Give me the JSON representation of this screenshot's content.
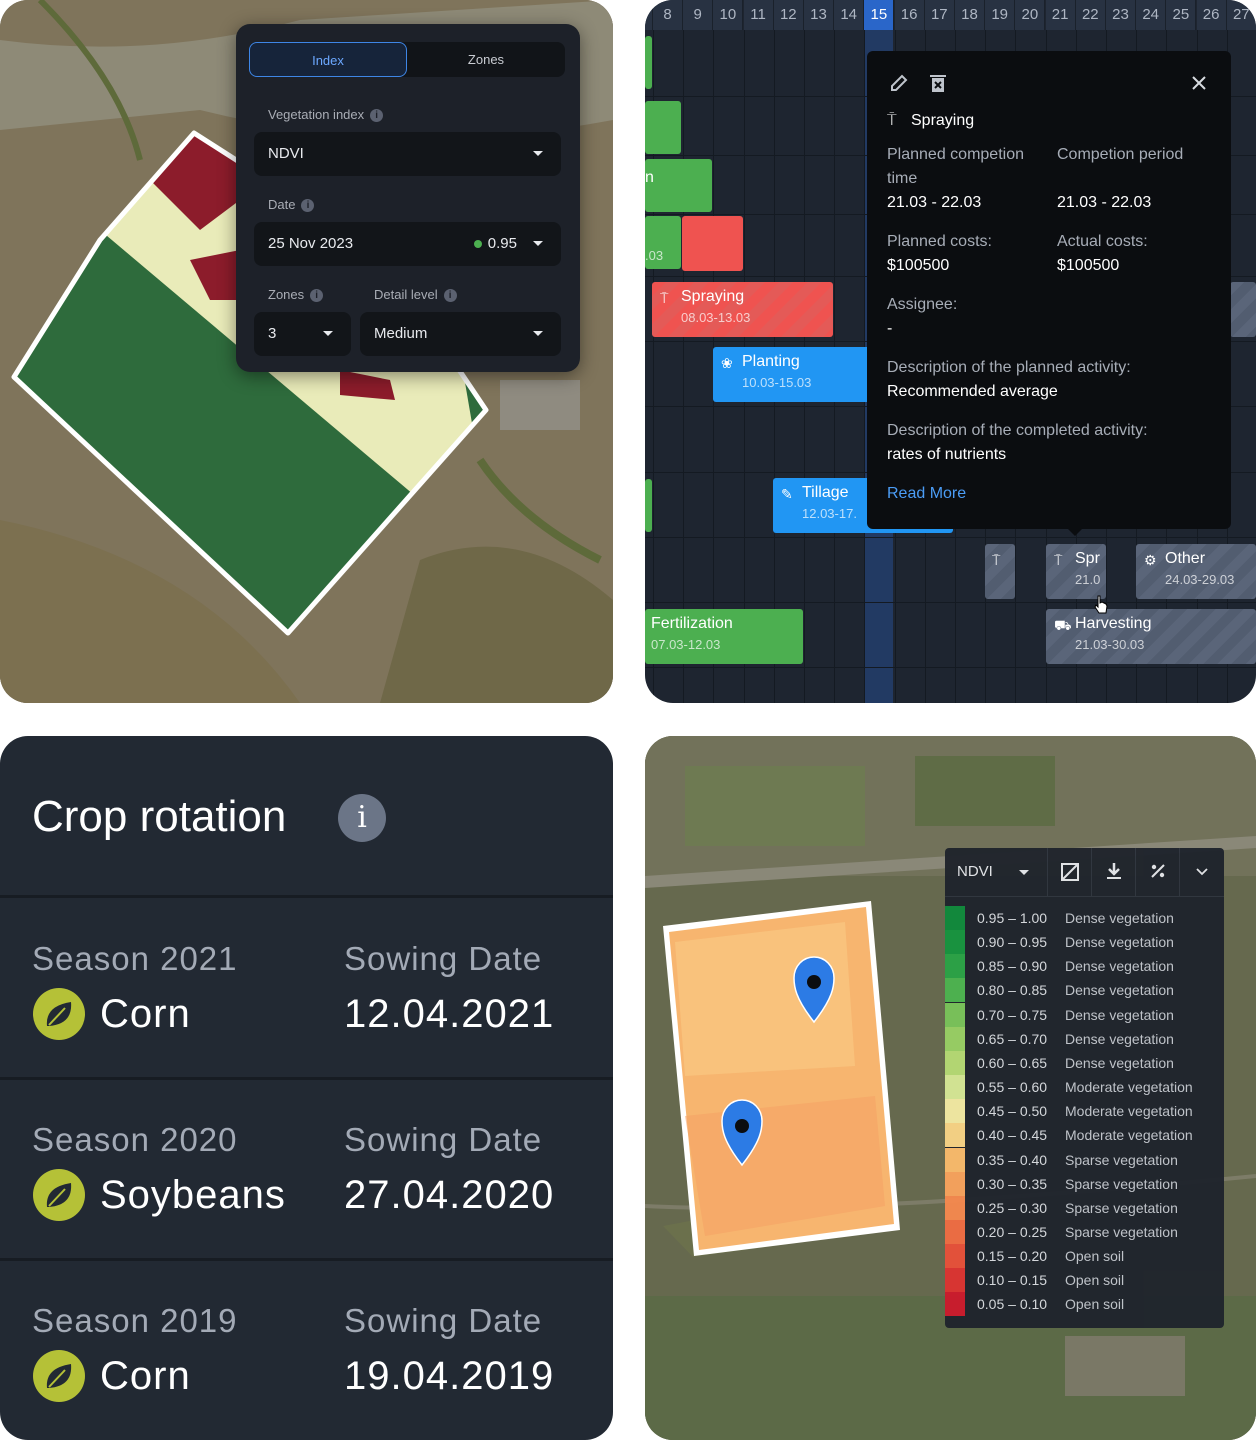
{
  "index_panel": {
    "tabs": [
      "Index",
      "Zones"
    ],
    "active_tab": "Index",
    "vegetation_index_label": "Vegetation index",
    "vegetation_index_value": "NDVI",
    "date_label": "Date",
    "date_value": "25 Nov 2023",
    "date_index_value": "0.95",
    "zones_label": "Zones",
    "zones_value": "3",
    "detail_label": "Detail level",
    "detail_value": "Medium"
  },
  "gantt": {
    "days": [
      "8",
      "9",
      "10",
      "11",
      "12",
      "13",
      "14",
      "15",
      "16",
      "17",
      "18",
      "19",
      "20",
      "21",
      "22",
      "23",
      "24",
      "25",
      "26",
      "27"
    ],
    "today": "15",
    "tasks": [
      {
        "name": "n",
        "dates": ".03"
      },
      {
        "name": "Spraying",
        "dates": "08.03-13.03"
      },
      {
        "name": "Planting",
        "dates": "10.03-15.03"
      },
      {
        "name": "Tillage",
        "dates": "12.03-17."
      },
      {
        "name": "Spr",
        "dates": "21.0"
      },
      {
        "name": "Other",
        "dates": "24.03-29.03"
      },
      {
        "name": "Fertilization",
        "dates": "07.03-12.03"
      },
      {
        "name": "Harvesting",
        "dates": "21.03-30.03"
      }
    ],
    "popup": {
      "title": "Spraying",
      "planned_time_label": "Planned competion time",
      "planned_time_value": "21.03 - 22.03",
      "period_label": "Competion period",
      "period_value": "21.03 - 22.03",
      "planned_costs_label": "Planned costs:",
      "planned_costs_value": "$100500",
      "actual_costs_label": "Actual costs:",
      "actual_costs_value": "$100500",
      "assignee_label": "Assignee:",
      "assignee_value": "-",
      "planned_desc_label": "Description of the planned activity:",
      "planned_desc_value": "Recommended average",
      "completed_desc_label": "Description of the completed activity:",
      "completed_desc_value": "rates of nutrients",
      "read_more": "Read More",
      "icons": [
        "pencil-icon",
        "trash-icon",
        "close-icon",
        "sprayer-icon"
      ]
    }
  },
  "crop_rotation": {
    "title": "Crop rotation",
    "info": "i",
    "seasons": [
      {
        "season": "Season 2021",
        "crop": "Corn",
        "sowing_label": "Sowing Date",
        "sowing_date": "12.04.2021"
      },
      {
        "season": "Season 2020",
        "crop": "Soybeans",
        "sowing_label": "Sowing Date",
        "sowing_date": "27.04.2020"
      },
      {
        "season": "Season 2019",
        "crop": "Corn",
        "sowing_label": "Sowing Date",
        "sowing_date": "19.04.2019"
      }
    ]
  },
  "ndvi_legend": {
    "index": "NDVI",
    "toolbar_icons": [
      "image-icon",
      "download-icon",
      "percent-icon",
      "chevron-down-icon"
    ],
    "rows": [
      {
        "range": "0.95 – 1.00",
        "label": "Dense vegetation",
        "color": "#0f8a3c"
      },
      {
        "range": "0.90 – 0.95",
        "label": "Dense vegetation",
        "color": "#16943f"
      },
      {
        "range": "0.85 – 0.90",
        "label": "Dense vegetation",
        "color": "#2aa346"
      },
      {
        "range": "0.80 – 0.85",
        "label": "Dense vegetation",
        "color": "#4db350"
      },
      {
        "range": "0.70 – 0.75",
        "label": "Dense vegetation",
        "color": "#79c35a"
      },
      {
        "range": "0.65 – 0.70",
        "label": "Dense vegetation",
        "color": "#98cf64"
      },
      {
        "range": "0.60 – 0.65",
        "label": "Dense vegetation",
        "color": "#b6da74"
      },
      {
        "range": "0.55 – 0.60",
        "label": "Moderate vegetation",
        "color": "#d6e795"
      },
      {
        "range": "0.45 – 0.50",
        "label": "Moderate vegetation",
        "color": "#f3e9a3"
      },
      {
        "range": "0.40 – 0.45",
        "label": "Moderate vegetation",
        "color": "#f8d486"
      },
      {
        "range": "0.35 – 0.40",
        "label": "Sparse vegetation",
        "color": "#f9bb6c"
      },
      {
        "range": "0.30 – 0.35",
        "label": "Sparse vegetation",
        "color": "#f8a35d"
      },
      {
        "range": "0.25 – 0.30",
        "label": "Sparse vegetation",
        "color": "#f5894f"
      },
      {
        "range": "0.20 – 0.25",
        "label": "Sparse vegetation",
        "color": "#f06d43"
      },
      {
        "range": "0.15 – 0.20",
        "label": "Open soil",
        "color": "#e8513a"
      },
      {
        "range": "0.10 – 0.15",
        "label": "Open soil",
        "color": "#dc3331"
      },
      {
        "range": "0.05 – 0.10",
        "label": "Open soil",
        "color": "#cc1a2c"
      }
    ]
  }
}
